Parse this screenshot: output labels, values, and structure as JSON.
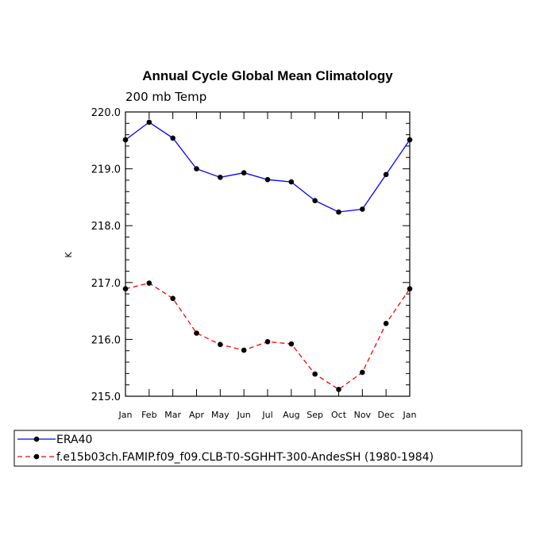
{
  "chart_data": {
    "type": "line",
    "title": "Annual Cycle Global Mean Climatology",
    "subtitle": "200 mb Temp",
    "xlabel": "",
    "ylabel": "K",
    "categories": [
      "Jan",
      "Feb",
      "Mar",
      "Apr",
      "May",
      "Jun",
      "Jul",
      "Aug",
      "Sep",
      "Oct",
      "Nov",
      "Dec",
      "Jan"
    ],
    "ylim": [
      215.0,
      220.0
    ],
    "yticks": [
      "215.0",
      "216.0",
      "217.0",
      "218.0",
      "219.0",
      "220.0"
    ],
    "grid": false,
    "legend_position": "bottom",
    "series": [
      {
        "name": "ERA40",
        "color": "#0000ff",
        "line_style": "solid",
        "marker": "filled-circle",
        "values": [
          219.51,
          219.82,
          219.54,
          219.0,
          218.85,
          218.93,
          218.81,
          218.77,
          218.44,
          218.24,
          218.29,
          218.9,
          219.51
        ]
      },
      {
        "name": "f.e15b03ch.FAMIP.f09_f09.CLB-T0-SGHHT-300-AndesSH (1980-1984)",
        "color": "#ff0000",
        "line_style": "dashed",
        "marker": "filled-circle",
        "values": [
          216.89,
          216.99,
          216.72,
          216.11,
          215.91,
          215.81,
          215.96,
          215.92,
          215.39,
          215.12,
          215.42,
          216.28,
          216.89
        ]
      }
    ]
  }
}
